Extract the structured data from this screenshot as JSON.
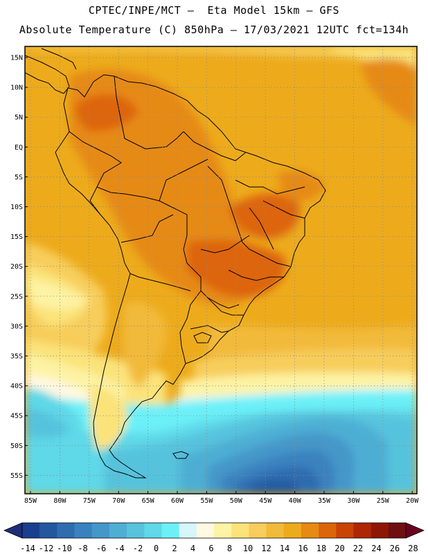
{
  "header": {
    "line1": "CPTEC/INPE/MCT –  Eta Model 15km – GFS",
    "line2": "Absolute Temperature (C) 850hPa – 17/03/2021 12UTC fct=134h"
  },
  "map": {
    "lat_labels": [
      "15N",
      "10N",
      "5N",
      "EQ",
      "5S",
      "10S",
      "15S",
      "20S",
      "25S",
      "30S",
      "35S",
      "40S",
      "45S",
      "50S",
      "55S"
    ],
    "lon_labels": [
      "85W",
      "80W",
      "75W",
      "70W",
      "65W",
      "60W",
      "55W",
      "50W",
      "45W",
      "40W",
      "35W",
      "30W",
      "25W",
      "20W"
    ]
  },
  "colorbar": {
    "labels": [
      "-14",
      "-12",
      "-10",
      "-8",
      "-6",
      "-4",
      "-2",
      "0",
      "2",
      "4",
      "6",
      "8",
      "10",
      "12",
      "14",
      "16",
      "18",
      "20",
      "22",
      "24",
      "26",
      "28"
    ],
    "colors": [
      "#1a3f8f",
      "#24589e",
      "#2f6cb0",
      "#3a82bf",
      "#4497c9",
      "#4eaed4",
      "#57c3dd",
      "#5fd8e8",
      "#6cf0f8",
      "#d6f6fb",
      "#fff8e2",
      "#fdf3a4",
      "#fbe37a",
      "#f7cd5c",
      "#f2ba3b",
      "#edab1c",
      "#e68a12",
      "#dd6509",
      "#c94305",
      "#ae2603",
      "#8e1704",
      "#6f0f12"
    ],
    "low_color": "#1e2e78",
    "high_color": "#6a0020"
  }
}
